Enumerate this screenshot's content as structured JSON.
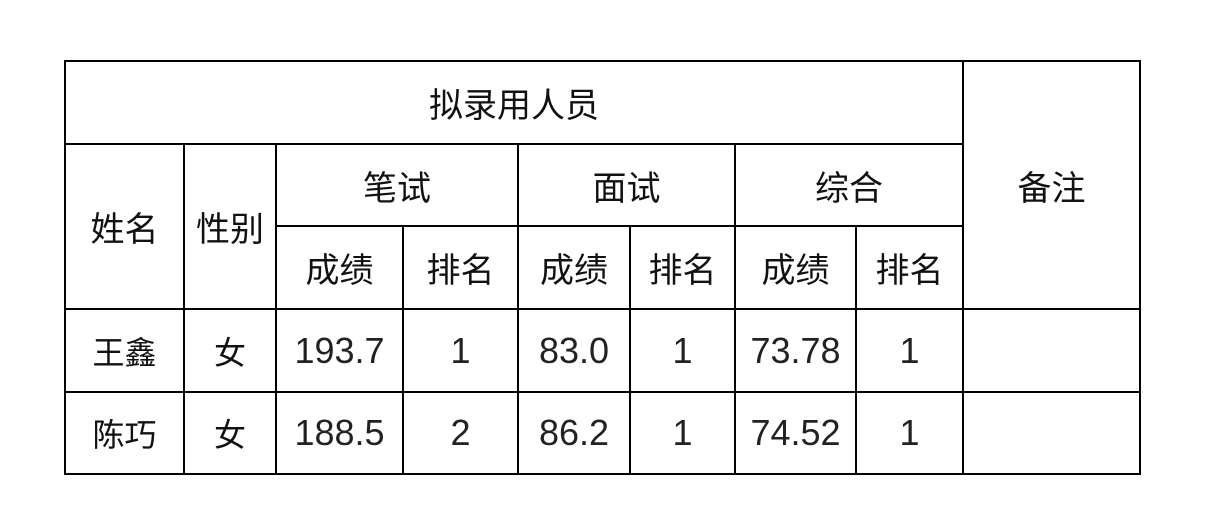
{
  "table": {
    "title": "拟录用人员",
    "remarks_header": "备注",
    "name_header": "姓名",
    "gender_header": "性别",
    "groups": [
      "笔试",
      "面试",
      "综合"
    ],
    "score_label": "成绩",
    "rank_label": "排名",
    "rows": [
      {
        "name": "王鑫",
        "gender": "女",
        "written_score": "193.7",
        "written_rank": "1",
        "interview_score": "83.0",
        "interview_rank": "1",
        "total_score": "73.78",
        "total_rank": "1",
        "remarks": ""
      },
      {
        "name": "陈巧",
        "gender": "女",
        "written_score": "188.5",
        "written_rank": "2",
        "interview_score": "86.2",
        "interview_rank": "1",
        "total_score": "74.52",
        "total_rank": "1",
        "remarks": ""
      }
    ]
  }
}
